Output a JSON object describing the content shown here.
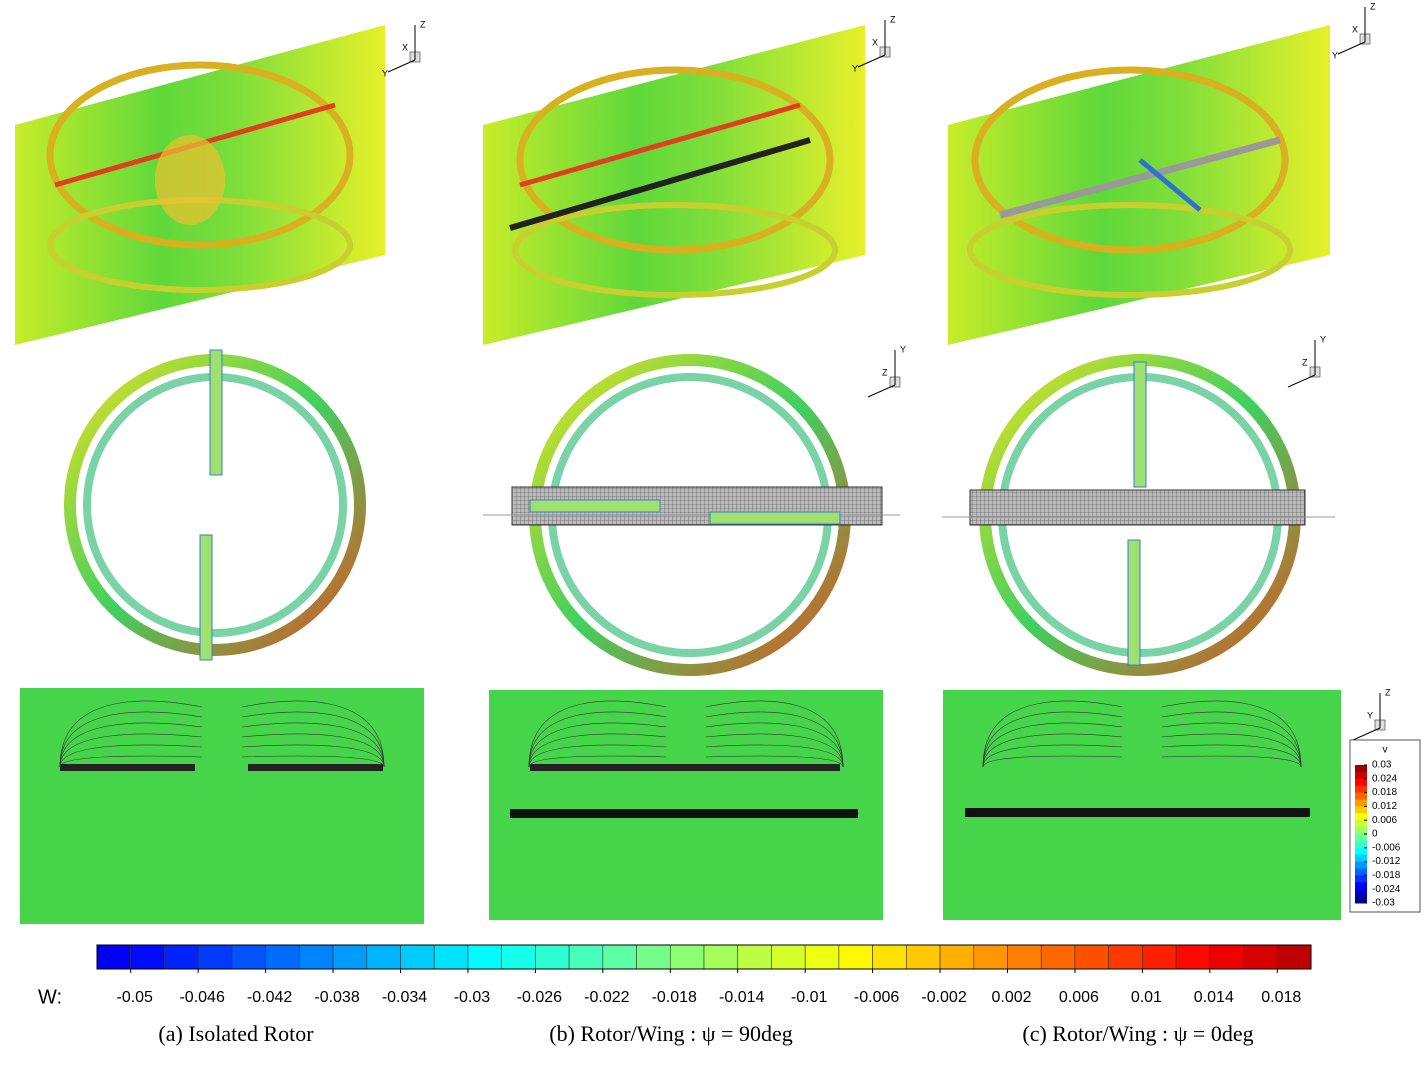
{
  "panels": [
    {
      "caption": "(a) Isolated Rotor"
    },
    {
      "caption": "(b) Rotor/Wing : ψ = 90deg"
    },
    {
      "caption": "(c) Rotor/Wing : ψ = 0deg"
    }
  ],
  "triads": [
    {
      "labels": [
        "Z",
        "X",
        "Y"
      ]
    },
    {
      "labels": [
        "Z",
        "X",
        "Y"
      ]
    },
    {
      "labels": [
        "Z",
        "X",
        "Y"
      ]
    },
    {
      "labels": [
        "Y",
        "Z"
      ]
    },
    {
      "labels": [
        "Y",
        "Z"
      ]
    },
    {
      "labels": [
        "Z",
        "Y"
      ]
    }
  ],
  "colorbar": {
    "label": "W:",
    "lim": [
      -0.052,
      0.02
    ],
    "ticks": [
      -0.05,
      -0.046,
      -0.042,
      -0.038,
      -0.034,
      -0.03,
      -0.026,
      -0.022,
      -0.018,
      -0.014,
      -0.01,
      -0.006,
      -0.002,
      0.002,
      0.006,
      0.01,
      0.014,
      0.018
    ]
  },
  "legend": {
    "title": "v",
    "lim": [
      -0.03,
      0.03
    ],
    "ticks": [
      0.03,
      0.024,
      0.018,
      0.012,
      0.006,
      0,
      -0.006,
      -0.012,
      -0.018,
      -0.024,
      -0.03
    ]
  }
}
